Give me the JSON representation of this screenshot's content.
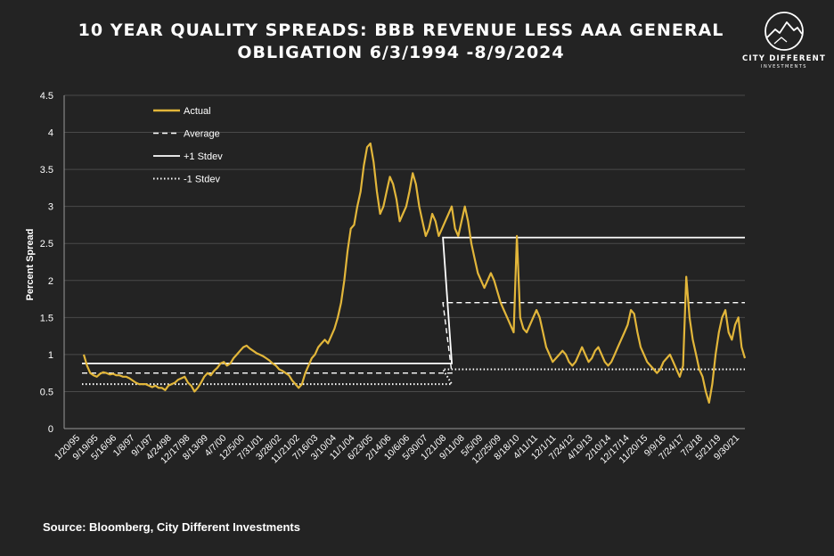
{
  "title_line1": "10 YEAR QUALITY SPREADS: BBB REVENUE LESS AAA GENERAL",
  "title_line2": "OBLIGATION 6/3/1994 -8/9/2024",
  "logo": {
    "name": "CITY DIFFERENT",
    "sub": "INVESTMENTS",
    "icon": "mountain-circle-icon"
  },
  "source": "Source: Bloomberg, City Different Investments",
  "colors": {
    "actual": "#E2B63A",
    "background": "#232323",
    "text": "#FFFFFF",
    "axis": "#9A9A9A"
  },
  "chart_data": {
    "type": "line",
    "ylabel": "Percent Spread",
    "xlabel": "",
    "ylim": [
      0,
      4.5
    ],
    "yticks": [
      "0",
      "0.5",
      "1",
      "1.5",
      "2",
      "2.5",
      "3",
      "3.5",
      "4",
      "4.5"
    ],
    "grid": "horizontal",
    "legend_position": "top-left",
    "x_tick_labels": [
      "1/20/95",
      "9/19/95",
      "5/16/96",
      "1/8/97",
      "9/1/97",
      "4/24/98",
      "12/17/98",
      "8/13/99",
      "4/7/00",
      "12/5/00",
      "7/31/01",
      "3/28/02",
      "11/21/02",
      "7/16/03",
      "3/10/04",
      "11/1/04",
      "6/23/05",
      "2/14/06",
      "10/6/06",
      "5/30/07",
      "1/21/08",
      "9/11/08",
      "5/5/09",
      "12/25/09",
      "8/18/10",
      "4/11/11",
      "12/1/11",
      "7/24/12",
      "4/19/13",
      "2/10/14",
      "12/17/14",
      "11/20/15",
      "9/9/16",
      "7/24/17",
      "7/3/18",
      "5/21/19",
      "9/30/21"
    ],
    "series": [
      {
        "name": "Actual",
        "style": "solid",
        "values": [
          1.0,
          0.85,
          0.75,
          0.72,
          0.7,
          0.74,
          0.76,
          0.75,
          0.73,
          0.74,
          0.72,
          0.72,
          0.7,
          0.7,
          0.68,
          0.65,
          0.62,
          0.6,
          0.6,
          0.6,
          0.58,
          0.56,
          0.58,
          0.55,
          0.55,
          0.52,
          0.58,
          0.6,
          0.62,
          0.66,
          0.68,
          0.7,
          0.62,
          0.58,
          0.5,
          0.55,
          0.62,
          0.7,
          0.75,
          0.72,
          0.78,
          0.82,
          0.88,
          0.9,
          0.85,
          0.88,
          0.95,
          1.0,
          1.05,
          1.1,
          1.12,
          1.08,
          1.05,
          1.02,
          1.0,
          0.98,
          0.95,
          0.92,
          0.88,
          0.85,
          0.8,
          0.78,
          0.75,
          0.72,
          0.65,
          0.6,
          0.55,
          0.6,
          0.75,
          0.85,
          0.95,
          1.0,
          1.1,
          1.15,
          1.2,
          1.15,
          1.25,
          1.35,
          1.5,
          1.7,
          2.0,
          2.4,
          2.7,
          2.75,
          3.0,
          3.2,
          3.55,
          3.8,
          3.85,
          3.6,
          3.2,
          2.9,
          3.0,
          3.2,
          3.4,
          3.3,
          3.1,
          2.8,
          2.9,
          3.0,
          3.2,
          3.45,
          3.3,
          3.0,
          2.8,
          2.6,
          2.7,
          2.9,
          2.8,
          2.6,
          2.7,
          2.8,
          2.9,
          3.0,
          2.7,
          2.6,
          2.8,
          3.0,
          2.8,
          2.5,
          2.3,
          2.1,
          2.0,
          1.9,
          2.0,
          2.1,
          2.0,
          1.85,
          1.7,
          1.6,
          1.5,
          1.4,
          1.3,
          2.6,
          1.5,
          1.35,
          1.3,
          1.4,
          1.5,
          1.6,
          1.5,
          1.3,
          1.1,
          1.0,
          0.9,
          0.95,
          1.0,
          1.05,
          1.0,
          0.9,
          0.85,
          0.9,
          1.0,
          1.1,
          1.0,
          0.9,
          0.95,
          1.05,
          1.1,
          1.0,
          0.9,
          0.85,
          0.9,
          1.0,
          1.1,
          1.2,
          1.3,
          1.4,
          1.6,
          1.55,
          1.3,
          1.1,
          1.0,
          0.9,
          0.85,
          0.8,
          0.75,
          0.8,
          0.9,
          0.95,
          1.0,
          0.9,
          0.8,
          0.7,
          0.85,
          2.05,
          1.5,
          1.2,
          1.0,
          0.8,
          0.7,
          0.5,
          0.35,
          0.6,
          1.0,
          1.3,
          1.5,
          1.6,
          1.3,
          1.2,
          1.4,
          1.5,
          1.1,
          0.95
        ]
      },
      {
        "name": "Average",
        "style": "dashed",
        "segments": [
          {
            "from_label": "1/20/95",
            "to_label": "1/21/08",
            "value": 0.75
          },
          {
            "from_label": "1/21/08",
            "to_label": "9/30/21",
            "value": 1.7
          }
        ]
      },
      {
        "name": "+1 Stdev",
        "style": "solid-white",
        "segments": [
          {
            "from_label": "1/20/95",
            "to_label": "1/21/08",
            "value": 0.88
          },
          {
            "from_label": "1/21/08",
            "to_label": "9/30/21",
            "value": 2.58
          }
        ]
      },
      {
        "name": "-1 Stdev",
        "style": "dotted",
        "segments": [
          {
            "from_label": "1/20/95",
            "to_label": "1/21/08",
            "value": 0.6
          },
          {
            "from_label": "1/21/08",
            "to_label": "9/30/21",
            "value": 0.8
          }
        ]
      }
    ]
  }
}
